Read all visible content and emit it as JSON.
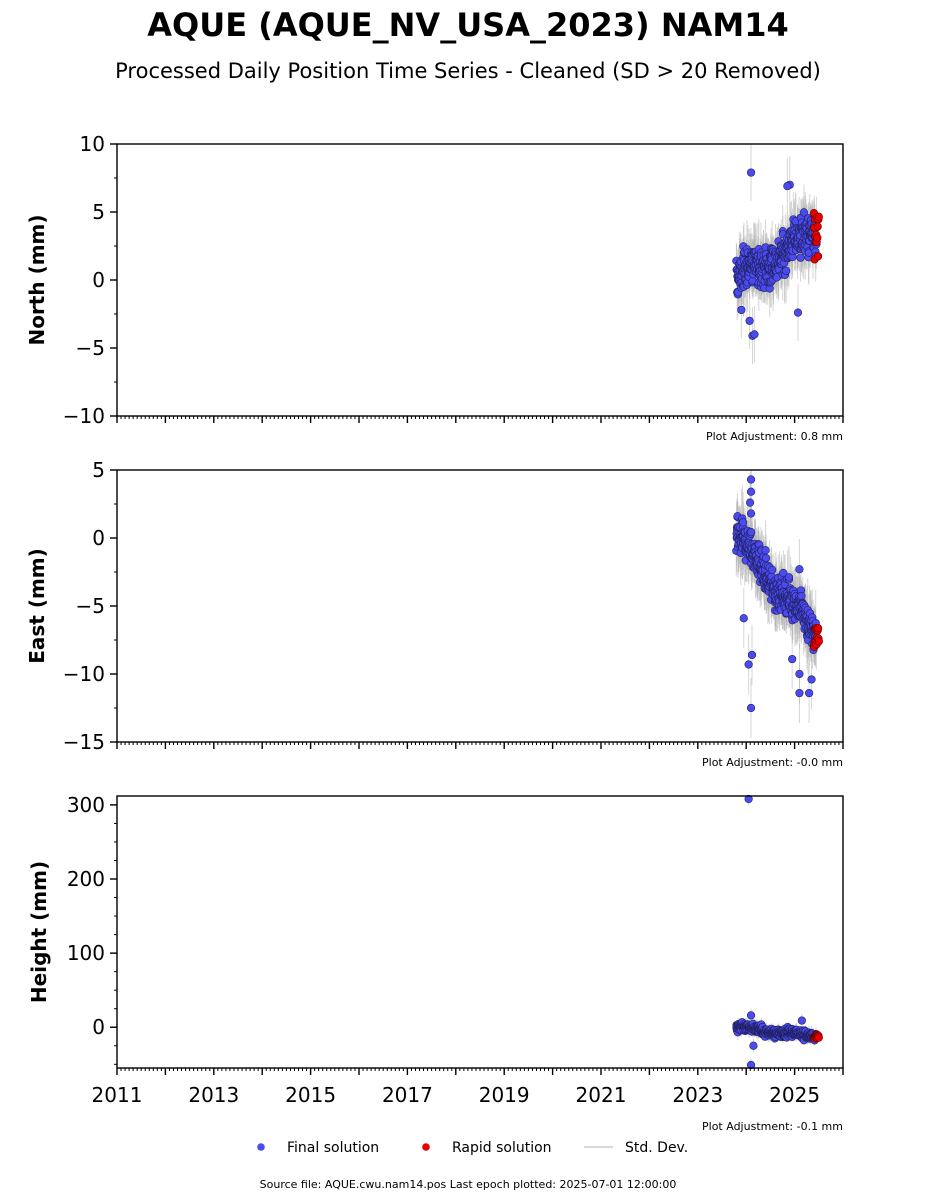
{
  "chart_data": {
    "type": "scatter",
    "title": "AQUE (AQUE_NV_USA_2023) NAM14",
    "subtitle": "Processed Daily Position Time Series - Cleaned (SD > 20 Removed)",
    "x_range": [
      2011.0,
      2026.0
    ],
    "x_ticks": [
      "2011",
      "2013",
      "2015",
      "2017",
      "2019",
      "2021",
      "2023",
      "2025"
    ],
    "panels": [
      {
        "id": "north",
        "ylabel": "North (mm)",
        "ylim": [
          -10,
          10
        ],
        "y_ticks": [
          -10,
          -5,
          0,
          5,
          10
        ],
        "y_tick_labels": [
          "−10",
          "−5",
          "0",
          "5",
          "10"
        ],
        "adjustment_label": "Plot Adjustment: 0.8 mm",
        "trend": {
          "start": [
            2023.8,
            0.0
          ],
          "end": [
            2025.45,
            3.5
          ],
          "noise": 1.3,
          "std": 1.6
        },
        "outliers": [
          [
            2024.1,
            7.9
          ],
          [
            2023.9,
            -2.2
          ],
          [
            2024.07,
            -3.0
          ],
          [
            2024.13,
            -4.1
          ],
          [
            2024.17,
            -4.0
          ],
          [
            2025.07,
            -2.4
          ],
          [
            2024.9,
            7.0
          ],
          [
            2024.85,
            6.9
          ]
        ],
        "rapid": {
          "x_start": 2025.4,
          "x_end": 2025.5,
          "y_range": [
            1.4,
            5.2
          ]
        }
      },
      {
        "id": "east",
        "ylabel": "East (mm)",
        "ylim": [
          -15,
          5
        ],
        "y_ticks": [
          -15,
          -10,
          -5,
          0,
          5
        ],
        "y_tick_labels": [
          "−15",
          "−10",
          "−5",
          "0",
          "5"
        ],
        "adjustment_label": "Plot Adjustment: -0.0 mm",
        "trend": {
          "start": [
            2023.8,
            0.0
          ],
          "end": [
            2025.45,
            -7.0
          ],
          "noise": 1.2,
          "std": 1.7
        },
        "outliers": [
          [
            2024.1,
            4.3
          ],
          [
            2024.1,
            3.4
          ],
          [
            2024.08,
            2.6
          ],
          [
            2024.1,
            1.8
          ],
          [
            2024.12,
            -8.6
          ],
          [
            2024.05,
            -9.3
          ],
          [
            2024.1,
            -12.5
          ],
          [
            2023.95,
            -5.9
          ],
          [
            2024.4,
            -0.9
          ],
          [
            2025.1,
            -11.4
          ],
          [
            2025.3,
            -11.4
          ],
          [
            2025.35,
            -10.4
          ],
          [
            2025.1,
            -10.0
          ],
          [
            2024.95,
            -8.9
          ],
          [
            2025.1,
            -2.3
          ]
        ],
        "rapid": {
          "x_start": 2025.4,
          "x_end": 2025.5,
          "y_range": [
            -8.2,
            -6.2
          ]
        }
      },
      {
        "id": "height",
        "ylabel": "Height (mm)",
        "ylim": [
          -55,
          312
        ],
        "y_ticks": [
          0,
          100,
          200,
          300
        ],
        "y_tick_labels": [
          "0",
          "100",
          "200",
          "300"
        ],
        "adjustment_label": "Plot Adjustment: -0.1 mm",
        "trend": {
          "start": [
            2023.8,
            0.0
          ],
          "end": [
            2025.45,
            -13.0
          ],
          "noise": 5.0,
          "std": 7.0
        },
        "outliers": [
          [
            2024.05,
            308
          ],
          [
            2024.1,
            -51
          ],
          [
            2024.15,
            -25
          ],
          [
            2024.1,
            16
          ],
          [
            2025.15,
            9
          ]
        ],
        "rapid": {
          "x_start": 2025.4,
          "x_end": 2025.5,
          "y_range": [
            -16,
            -10
          ]
        }
      }
    ],
    "legend": [
      {
        "label": "Final solution",
        "kind": "final"
      },
      {
        "label": "Rapid solution",
        "kind": "rapid"
      },
      {
        "label": "Std. Dev.",
        "kind": "std"
      }
    ],
    "colors": {
      "final": "#4b4bf0",
      "rapid": "#e80000",
      "std": "#b4b4b4",
      "edge": "#202060"
    }
  },
  "footer": "Source file: AQUE.cwu.nam14.pos  Last epoch plotted: 2025-07-01 12:00:00"
}
